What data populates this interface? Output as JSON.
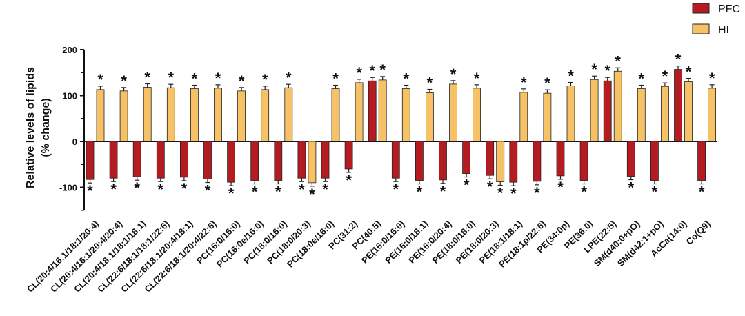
{
  "chart_data": {
    "type": "bar",
    "title": "",
    "xlabel": "",
    "ylabel": "Relative levels of  lipids",
    "ylabel_line2": "(% change)",
    "ylim": [
      -150,
      200
    ],
    "yticks": [
      -100,
      0,
      100,
      200
    ],
    "categories": [
      "CL(20:4/16:1/18:1/20:4)",
      "CL(20:4/16:1/20:4/20:4)",
      "CL(20:4/18:1/18:1/18:1)",
      "CL(22:6/18:1/18:1/22:6)",
      "CL(22:6/18:1/20:4/18:1)",
      "CL(22:6/18:1/20:4/22:6)",
      "PC(16:0/16:0)",
      "PC(16:0e/16:0)",
      "PC(18:0/16:0)",
      "PC(18:0/20:3)",
      "PC(18:0e/16:0)",
      "PC(31:2)",
      "PC(40:5)",
      "PE(16:0/16:0)",
      "PE(16:0/18:1)",
      "PE(16:0/20:4)",
      "PE(18:0/18:0)",
      "PE(18:0/20:3)",
      "PE(18:1/18:1)",
      "PE(18:1p/22:6)",
      "PE(34:0p)",
      "PE(36:0)",
      "LPE(22:5)",
      "SM(d40:0+pO)",
      "SM(d42:1+pO)",
      "AcCa(14:0)",
      "Co(Q9)"
    ],
    "series": [
      {
        "name": "PFC",
        "color": "#b51c22",
        "values": [
          -83,
          -80,
          -77,
          -80,
          -78,
          -82,
          -89,
          -85,
          -85,
          -80,
          -80,
          -60,
          132,
          -80,
          -85,
          -84,
          -70,
          -74,
          -89,
          -87,
          -75,
          -85,
          132,
          -76,
          -85,
          157,
          -85
        ],
        "stars": [
          true,
          true,
          true,
          true,
          true,
          true,
          true,
          true,
          true,
          true,
          true,
          true,
          true,
          true,
          true,
          true,
          true,
          true,
          true,
          true,
          true,
          true,
          true,
          true,
          true,
          true,
          true
        ]
      },
      {
        "name": "HI",
        "color": "#f7c266",
        "values": [
          113,
          110,
          118,
          117,
          115,
          116,
          110,
          113,
          117,
          -90,
          115,
          128,
          134,
          115,
          106,
          125,
          116,
          -88,
          107,
          105,
          121,
          135,
          153,
          115,
          120,
          130,
          116
        ],
        "stars": [
          true,
          true,
          true,
          true,
          true,
          true,
          true,
          true,
          true,
          true,
          true,
          true,
          true,
          true,
          true,
          true,
          true,
          true,
          true,
          true,
          true,
          true,
          true,
          true,
          true,
          true,
          true
        ]
      }
    ],
    "significance_marker": "*",
    "legend": [
      {
        "label": "PFC",
        "color": "#b51c22"
      },
      {
        "label": "HI",
        "color": "#f7c266"
      }
    ],
    "legend_position": "top-right"
  }
}
